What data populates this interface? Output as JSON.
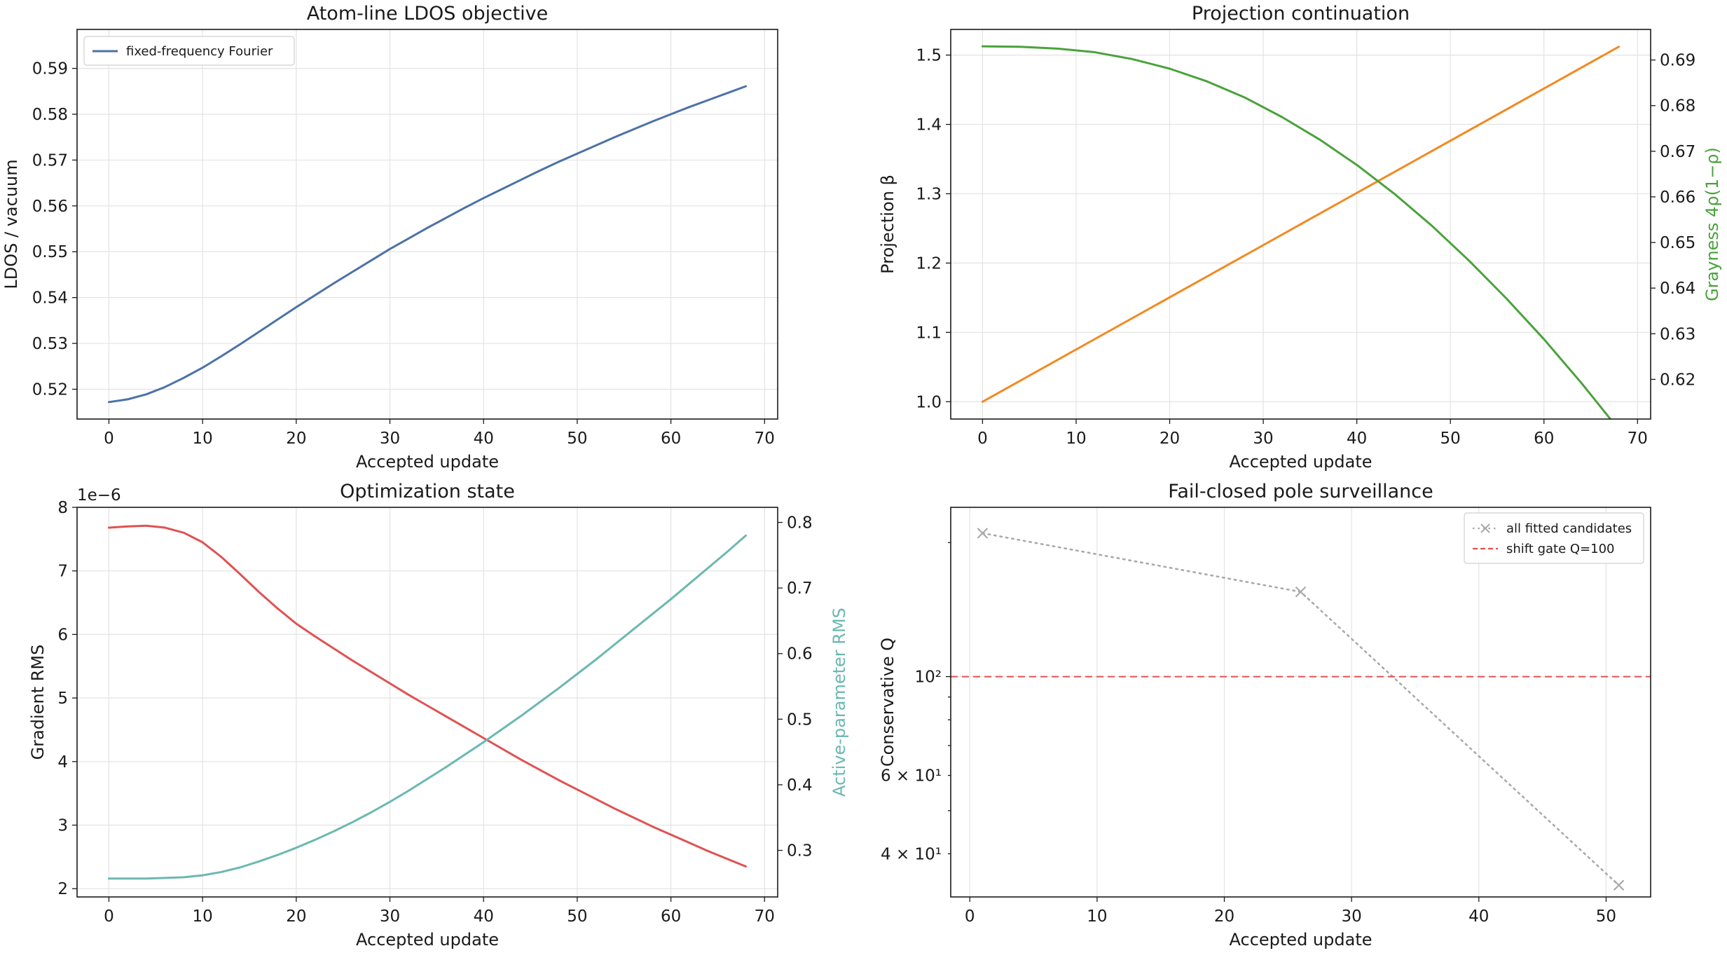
{
  "chart_data": [
    {
      "type": "line",
      "title": "Atom-line LDOS objective",
      "xlabel": "Accepted update",
      "ylabel": "LDOS / vacuum",
      "xlim": [
        -3.4,
        71.4
      ],
      "ylim": [
        0.5135,
        0.5985
      ],
      "x_ticks": [
        0,
        10,
        20,
        30,
        40,
        50,
        60,
        70
      ],
      "y_ticks": [
        0.52,
        0.53,
        0.54,
        0.55,
        0.56,
        0.57,
        0.58,
        0.59
      ],
      "grid": true,
      "legend": "top-left",
      "series": [
        {
          "name": "fixed-frequency Fourier",
          "color": "#4c72a6",
          "x": [
            0,
            2,
            4,
            6,
            8,
            10,
            12,
            14,
            16,
            18,
            20,
            22,
            24,
            26,
            28,
            30,
            32,
            34,
            36,
            38,
            40,
            42,
            44,
            46,
            48,
            50,
            52,
            54,
            56,
            58,
            60,
            62,
            64,
            66,
            68
          ],
          "y": [
            0.5172,
            0.5178,
            0.5189,
            0.5205,
            0.5225,
            0.5247,
            0.5272,
            0.5298,
            0.5325,
            0.5352,
            0.5379,
            0.5405,
            0.5431,
            0.5456,
            0.5481,
            0.5506,
            0.5529,
            0.5552,
            0.5574,
            0.5596,
            0.5617,
            0.5637,
            0.5657,
            0.5677,
            0.5696,
            0.5714,
            0.5732,
            0.575,
            0.5767,
            0.5784,
            0.58,
            0.5816,
            0.5831,
            0.5846,
            0.5861
          ]
        }
      ]
    },
    {
      "type": "line",
      "title": "Projection continuation",
      "xlabel": "Accepted update",
      "ylabel": "Projection β",
      "ylabel_right": "Grayness 4ρ(1−ρ)",
      "xlim": [
        -3.4,
        71.4
      ],
      "ylim": [
        0.975,
        1.537
      ],
      "ylim_right": [
        0.6113,
        0.6967
      ],
      "x_ticks": [
        0,
        10,
        20,
        30,
        40,
        50,
        60,
        70
      ],
      "y_ticks": [
        1.0,
        1.1,
        1.2,
        1.3,
        1.4,
        1.5
      ],
      "y_ticks_right": [
        0.62,
        0.63,
        0.64,
        0.65,
        0.66,
        0.67,
        0.68,
        0.69
      ],
      "grid": true,
      "series": [
        {
          "axis": "left",
          "color": "#f28a21",
          "x": [
            0,
            68
          ],
          "y": [
            1.0,
            1.512
          ]
        },
        {
          "axis": "right",
          "color": "#4aa23c",
          "x": [
            0,
            4,
            8,
            12,
            16,
            20,
            24,
            28,
            32,
            36,
            40,
            44,
            48,
            52,
            56,
            60,
            64,
            68
          ],
          "y": [
            0.693,
            0.6929,
            0.6925,
            0.6917,
            0.6902,
            0.6881,
            0.6853,
            0.6818,
            0.6775,
            0.6726,
            0.667,
            0.6607,
            0.6537,
            0.646,
            0.6377,
            0.6288,
            0.6192,
            0.609
          ]
        }
      ]
    },
    {
      "type": "line",
      "title": "Optimization state",
      "xlabel": "Accepted update",
      "ylabel": "Gradient RMS",
      "ylabel_right": "Active-parameter RMS",
      "offset_text": "1e−6",
      "xlim": [
        -3.4,
        71.4
      ],
      "ylim": [
        1.87,
        8.0
      ],
      "ylim_right": [
        0.229,
        0.823
      ],
      "x_ticks": [
        0,
        10,
        20,
        30,
        40,
        50,
        60,
        70
      ],
      "y_ticks": [
        2,
        3,
        4,
        5,
        6,
        7,
        8
      ],
      "y_ticks_right": [
        0.3,
        0.4,
        0.5,
        0.6,
        0.7,
        0.8
      ],
      "grid": true,
      "series": [
        {
          "axis": "left",
          "color": "#e05252",
          "x": [
            0,
            2,
            4,
            6,
            8,
            10,
            12,
            14,
            16,
            18,
            20,
            22,
            24,
            26,
            28,
            30,
            32,
            34,
            36,
            38,
            40,
            42,
            44,
            46,
            48,
            50,
            52,
            54,
            56,
            58,
            60,
            62,
            64,
            66,
            68
          ],
          "y": [
            7.68,
            7.7,
            7.71,
            7.68,
            7.6,
            7.45,
            7.22,
            6.95,
            6.67,
            6.41,
            6.17,
            5.97,
            5.78,
            5.59,
            5.41,
            5.23,
            5.05,
            4.88,
            4.71,
            4.54,
            4.37,
            4.2,
            4.03,
            3.87,
            3.71,
            3.56,
            3.41,
            3.26,
            3.12,
            2.98,
            2.85,
            2.72,
            2.59,
            2.47,
            2.35
          ]
        },
        {
          "axis": "right",
          "color": "#6bb8b1",
          "x": [
            0,
            2,
            4,
            6,
            8,
            10,
            12,
            14,
            16,
            18,
            20,
            22,
            24,
            26,
            28,
            30,
            32,
            34,
            36,
            38,
            40,
            42,
            44,
            46,
            48,
            50,
            52,
            54,
            56,
            58,
            60,
            62,
            64,
            66,
            68
          ],
          "y": [
            0.257,
            0.257,
            0.257,
            0.258,
            0.259,
            0.262,
            0.267,
            0.274,
            0.283,
            0.293,
            0.304,
            0.316,
            0.329,
            0.343,
            0.358,
            0.374,
            0.391,
            0.409,
            0.427,
            0.446,
            0.465,
            0.485,
            0.505,
            0.526,
            0.547,
            0.569,
            0.591,
            0.614,
            0.637,
            0.66,
            0.683,
            0.707,
            0.731,
            0.755,
            0.78
          ]
        }
      ]
    },
    {
      "type": "scatter",
      "title": "Fail-closed pole surveillance",
      "xlabel": "Accepted update",
      "ylabel": "Conservative Q",
      "y_scale": "log",
      "xlim": [
        -1.5,
        53.5
      ],
      "ylim": [
        32,
        240
      ],
      "x_ticks": [
        0,
        10,
        20,
        30,
        40,
        50
      ],
      "y_major_ticks": [
        100
      ],
      "y_major_tick_labels": [
        "10²"
      ],
      "y_minor_labeled_ticks": [
        40,
        60
      ],
      "y_minor_tick_labels": [
        "4 × 10¹",
        "6 × 10¹"
      ],
      "y_minor_ticks": [
        40,
        50,
        60,
        70,
        80,
        90,
        200
      ],
      "grid": true,
      "legend": "top-right",
      "series": [
        {
          "name": "all fitted candidates",
          "color": "#aaaaaa",
          "marker": "x",
          "linestyle": "dotted",
          "x": [
            1,
            26,
            51
          ],
          "y": [
            210,
            155,
            34
          ]
        },
        {
          "name": "shift gate Q=100",
          "color": "#e05252",
          "linestyle": "dashed",
          "hline": 100
        }
      ]
    }
  ]
}
